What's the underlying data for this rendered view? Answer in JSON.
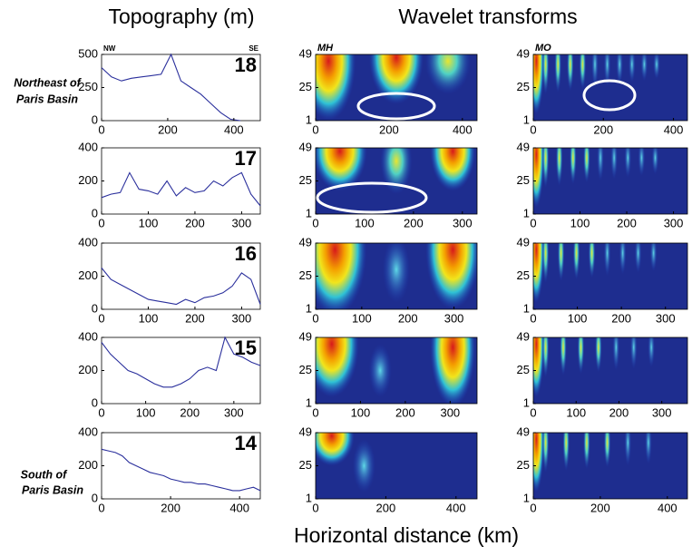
{
  "figure": {
    "topography_title": "Topography (m)",
    "wavelet_title": "Wavelet transforms",
    "x_label": "Horizontal distance  (km)",
    "nw": "NW",
    "se": "SE",
    "north_region": [
      "Northeast of",
      "Paris Basin"
    ],
    "south_region": [
      "South of",
      "Paris Basin"
    ]
  },
  "chart_data": [
    {
      "type": "line",
      "annotation": "18",
      "color": "#2a2f9c",
      "x": [
        0,
        30,
        60,
        90,
        120,
        150,
        180,
        210,
        240,
        270,
        300,
        330,
        360,
        390,
        420
      ],
      "values": [
        400,
        330,
        300,
        320,
        330,
        340,
        350,
        500,
        300,
        250,
        200,
        130,
        60,
        10,
        0
      ],
      "xlim": [
        0,
        480
      ],
      "ylim": [
        0,
        500
      ],
      "xticks": [
        0,
        200,
        400
      ],
      "yticks": [
        0,
        250,
        500
      ]
    },
    {
      "type": "line",
      "annotation": "17",
      "color": "#2a2f9c",
      "x": [
        0,
        20,
        40,
        60,
        80,
        100,
        120,
        140,
        160,
        180,
        200,
        220,
        240,
        260,
        280,
        300,
        320,
        340
      ],
      "values": [
        100,
        120,
        130,
        250,
        150,
        140,
        120,
        200,
        110,
        160,
        130,
        140,
        200,
        170,
        220,
        250,
        120,
        50
      ],
      "xlim": [
        0,
        340
      ],
      "ylim": [
        0,
        400
      ],
      "xticks": [
        0,
        100,
        200,
        300
      ],
      "yticks": [
        0,
        200,
        400
      ]
    },
    {
      "type": "line",
      "annotation": "16",
      "color": "#2a2f9c",
      "x": [
        0,
        20,
        40,
        60,
        80,
        100,
        120,
        140,
        160,
        180,
        200,
        220,
        240,
        260,
        280,
        300,
        320,
        340
      ],
      "values": [
        250,
        180,
        150,
        120,
        90,
        60,
        50,
        40,
        30,
        60,
        40,
        70,
        80,
        100,
        140,
        220,
        180,
        30
      ],
      "xlim": [
        0,
        340
      ],
      "ylim": [
        0,
        400
      ],
      "xticks": [
        0,
        100,
        200,
        300
      ],
      "yticks": [
        0,
        200,
        400
      ]
    },
    {
      "type": "line",
      "annotation": "15",
      "color": "#2a2f9c",
      "x": [
        0,
        20,
        40,
        60,
        80,
        100,
        120,
        140,
        160,
        180,
        200,
        220,
        240,
        260,
        280,
        300,
        320,
        340,
        360
      ],
      "values": [
        370,
        300,
        250,
        200,
        180,
        150,
        120,
        100,
        100,
        120,
        150,
        200,
        220,
        200,
        400,
        300,
        280,
        250,
        230
      ],
      "xlim": [
        0,
        360
      ],
      "ylim": [
        0,
        400
      ],
      "xticks": [
        0,
        100,
        200,
        300
      ],
      "yticks": [
        0,
        200,
        400
      ]
    },
    {
      "type": "line",
      "annotation": "14",
      "color": "#2a2f9c",
      "x": [
        0,
        20,
        40,
        60,
        80,
        100,
        120,
        140,
        160,
        180,
        200,
        220,
        240,
        260,
        280,
        300,
        320,
        340,
        360,
        380,
        400,
        420,
        440,
        460
      ],
      "values": [
        300,
        290,
        280,
        260,
        220,
        200,
        180,
        160,
        150,
        140,
        120,
        110,
        100,
        100,
        90,
        90,
        80,
        70,
        60,
        50,
        50,
        60,
        70,
        50
      ],
      "xlim": [
        0,
        460
      ],
      "ylim": [
        0,
        400
      ],
      "xticks": [
        0,
        200,
        400
      ],
      "yticks": [
        0,
        200,
        400
      ]
    },
    {
      "type": "heatmap",
      "title": "MH",
      "xlim": [
        0,
        440
      ],
      "ylim": [
        1,
        49
      ],
      "xticks": [
        0,
        200,
        400
      ],
      "yticks": [
        1,
        25,
        49
      ]
    },
    {
      "type": "heatmap",
      "title": "MO",
      "xlim": [
        0,
        440
      ],
      "ylim": [
        1,
        49
      ],
      "xticks": [
        0,
        200,
        400
      ],
      "yticks": [
        1,
        25,
        49
      ]
    },
    {
      "type": "heatmap",
      "xlim": [
        0,
        330
      ],
      "ylim": [
        1,
        49
      ],
      "xticks": [
        0,
        100,
        200,
        300
      ],
      "yticks": [
        1,
        25,
        49
      ]
    },
    {
      "type": "heatmap",
      "xlim": [
        0,
        330
      ],
      "ylim": [
        1,
        49
      ],
      "xticks": [
        0,
        100,
        200,
        300
      ],
      "yticks": [
        1,
        25,
        49
      ]
    },
    {
      "type": "heatmap",
      "xlim": [
        0,
        350
      ],
      "ylim": [
        1,
        49
      ],
      "xticks": [
        0,
        100,
        200,
        300
      ],
      "yticks": [
        1,
        25,
        49
      ]
    },
    {
      "type": "heatmap",
      "xlim": [
        0,
        350
      ],
      "ylim": [
        1,
        49
      ],
      "xticks": [
        0,
        100,
        200,
        300
      ],
      "yticks": [
        1,
        25,
        49
      ]
    },
    {
      "type": "heatmap",
      "xlim": [
        0,
        360
      ],
      "ylim": [
        1,
        49
      ],
      "xticks": [
        0,
        100,
        200,
        300
      ],
      "yticks": [
        1,
        25,
        49
      ]
    },
    {
      "type": "heatmap",
      "xlim": [
        0,
        360
      ],
      "ylim": [
        1,
        49
      ],
      "xticks": [
        0,
        100,
        200,
        300
      ],
      "yticks": [
        1,
        25,
        49
      ]
    },
    {
      "type": "heatmap",
      "xlim": [
        0,
        460
      ],
      "ylim": [
        1,
        49
      ],
      "xticks": [
        0,
        200,
        400
      ],
      "yticks": [
        1,
        25,
        49
      ]
    },
    {
      "type": "heatmap",
      "xlim": [
        0,
        460
      ],
      "ylim": [
        1,
        49
      ],
      "xticks": [
        0,
        200,
        400
      ],
      "yticks": [
        1,
        25,
        49
      ]
    }
  ]
}
